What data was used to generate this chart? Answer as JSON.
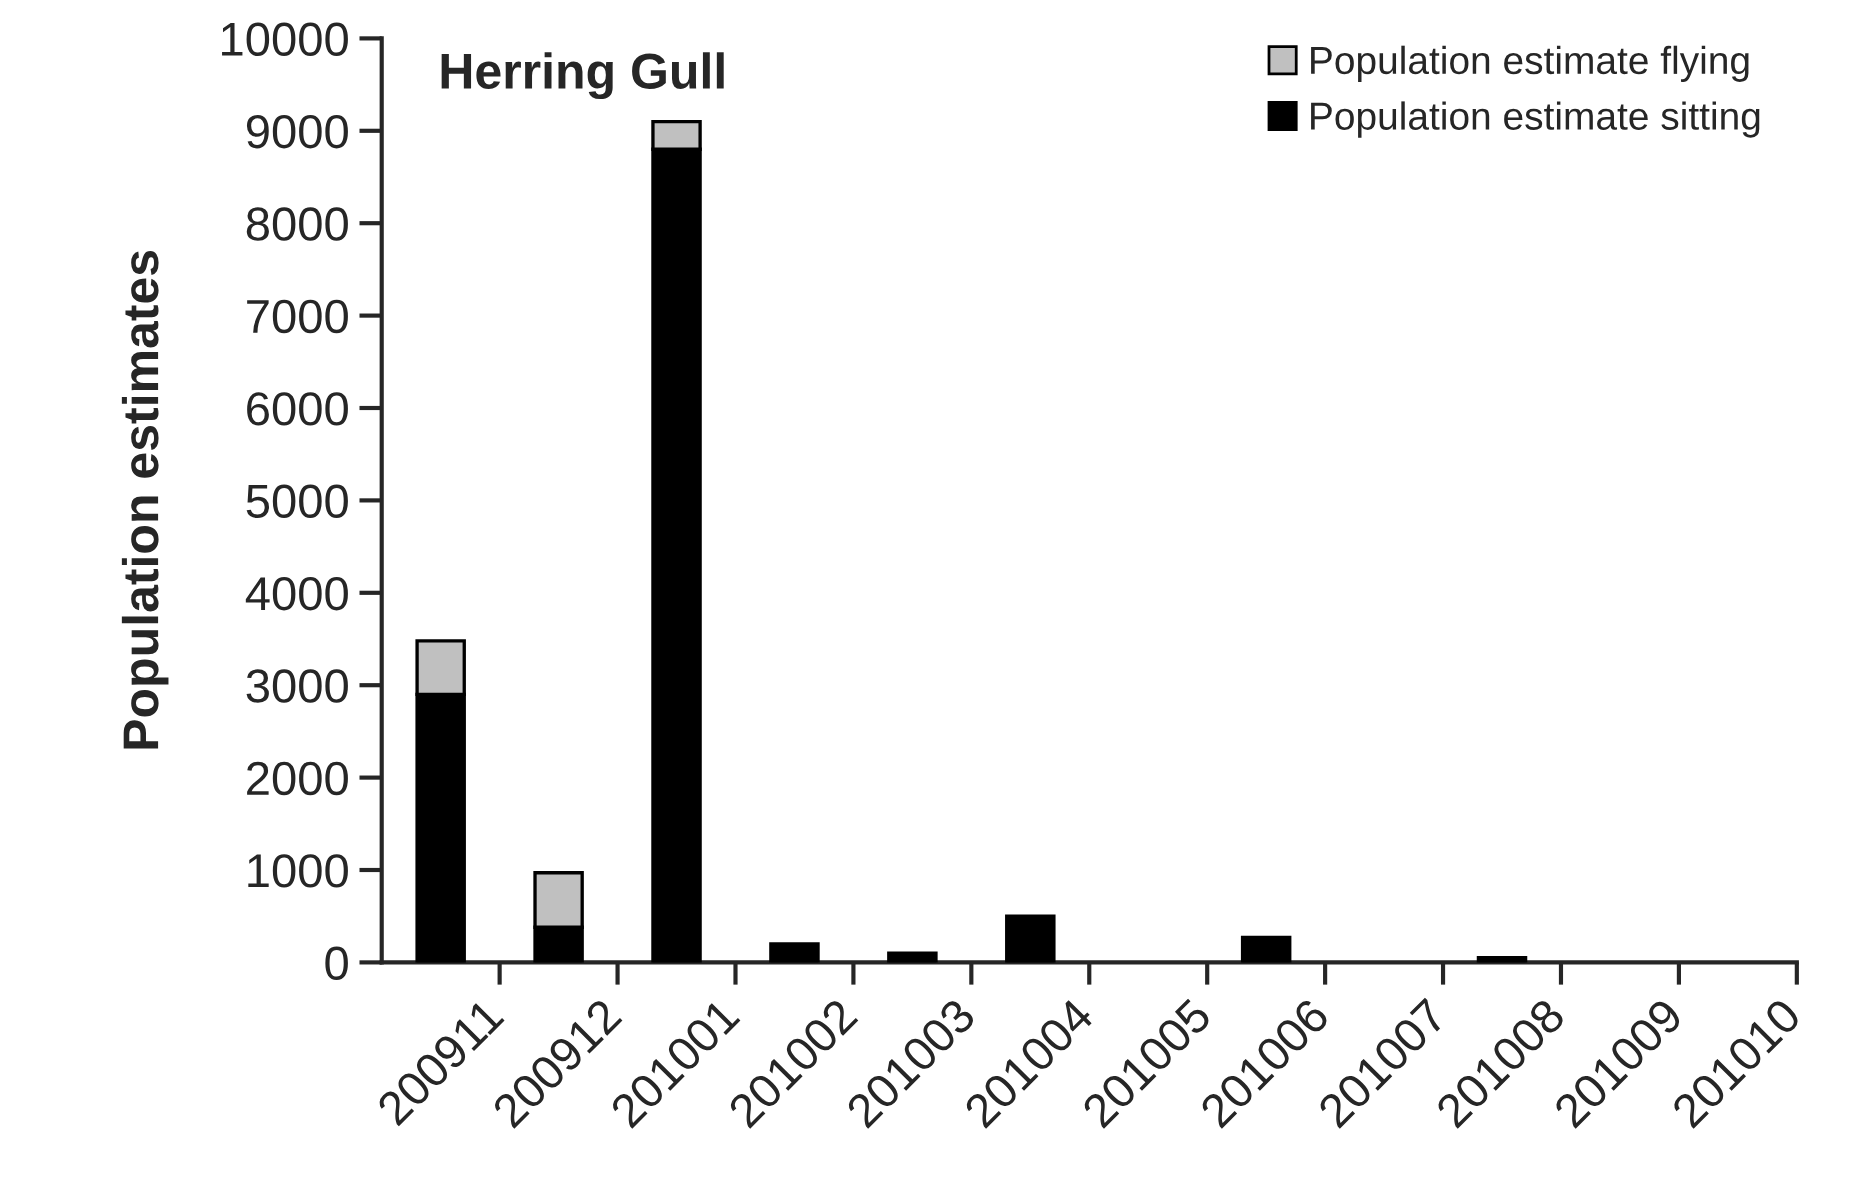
{
  "chart_data": {
    "type": "bar",
    "stacked": true,
    "title": "Herring Gull",
    "ylabel": "Population estimates",
    "categories": [
      "200911",
      "200912",
      "201001",
      "201002",
      "201003",
      "201004",
      "201005",
      "201006",
      "201007",
      "201008",
      "201009",
      "201010"
    ],
    "series": [
      {
        "name": "Population estimate sitting",
        "color": "#000000",
        "values": [
          2900,
          380,
          8800,
          200,
          100,
          500,
          null,
          270,
          null,
          50,
          null,
          null
        ]
      },
      {
        "name": "Population estimate flying",
        "color": "#c0c0c0",
        "values": [
          580,
          590,
          300,
          null,
          null,
          null,
          null,
          null,
          null,
          null,
          null,
          null
        ]
      }
    ],
    "ylim": [
      0,
      10000
    ],
    "yticks": [
      0,
      1000,
      2000,
      3000,
      4000,
      5000,
      6000,
      7000,
      8000,
      9000,
      10000
    ],
    "grid": false,
    "legend": "top right"
  }
}
